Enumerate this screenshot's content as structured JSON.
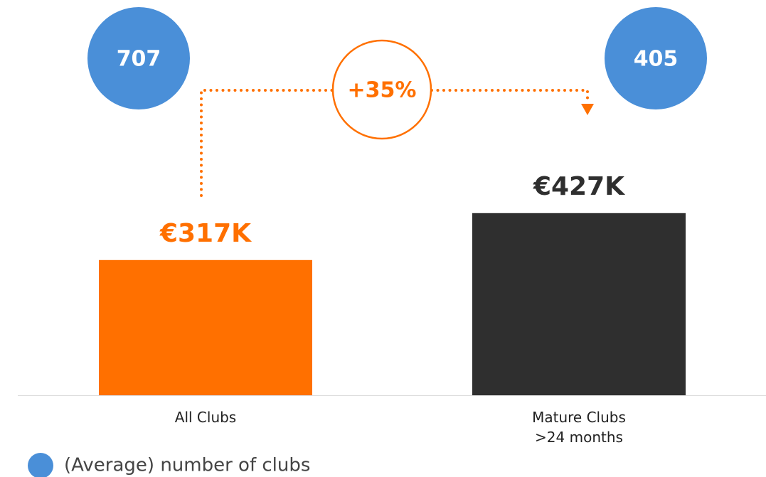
{
  "chart_data": {
    "type": "bar",
    "categories": [
      "All Clubs",
      "Mature Clubs\n>24 months"
    ],
    "values": [
      317,
      427
    ],
    "value_labels": [
      "€317K",
      "€427K"
    ],
    "colors": [
      "#ff7000",
      "#2f2f2f"
    ],
    "club_counts": {
      "name": "(Average) number of clubs",
      "color": "#4a8fd8",
      "values": [
        707,
        405
      ]
    },
    "annotation": "+35%",
    "annotation_color": "#ff7000"
  }
}
